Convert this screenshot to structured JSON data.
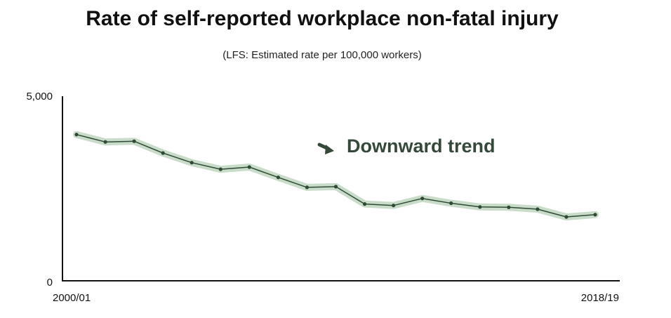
{
  "title": "Rate of self-reported workplace non-fatal injury",
  "subtitle": "(LFS: Estimated rate per 100,000 workers)",
  "colors": {
    "line": "#2f4a34",
    "band": "#c9dcc9",
    "annotation": "#34493a",
    "axis": "#111111"
  },
  "annotation": {
    "icon": "arrow-down-right-icon",
    "text": "Downward trend"
  },
  "chart_data": {
    "type": "line",
    "title": "Rate of self-reported workplace non-fatal injury",
    "subtitle": "(LFS: Estimated rate per 100,000 workers)",
    "x_tick_labels": [
      "2000/01",
      "2018/19"
    ],
    "y_tick_labels": [
      "5,000",
      "0"
    ],
    "ylim": [
      0,
      5000
    ],
    "grid": false,
    "x": [
      "2000/01",
      "2001/02",
      "2002/03",
      "2003/04",
      "2004/05",
      "2005/06",
      "2006/07",
      "2007/08",
      "2008/09",
      "2009/10",
      "2010/11",
      "2011/12",
      "2012/13",
      "2013/14",
      "2014/15",
      "2015/16",
      "2016/17",
      "2017/18",
      "2018/19"
    ],
    "series": [
      {
        "values": [
          3960,
          3760,
          3780,
          3460,
          3200,
          3020,
          3080,
          2800,
          2530,
          2550,
          2080,
          2040,
          2230,
          2100,
          2000,
          1990,
          1940,
          1730,
          1790
        ]
      }
    ]
  }
}
